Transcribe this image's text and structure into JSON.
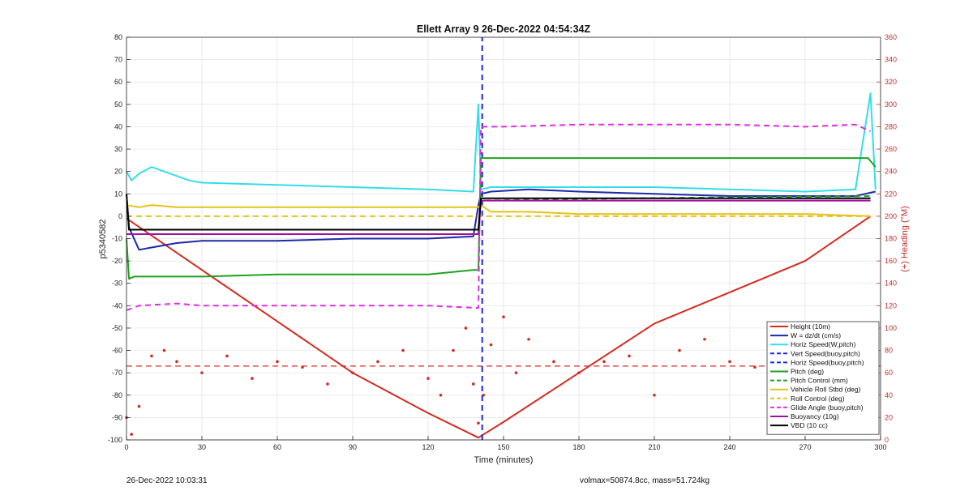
{
  "chart_data": {
    "type": "line",
    "title": "Ellett Array 9 26-Dec-2022 04:54:34Z",
    "xlabel": "Time (minutes)",
    "ylabel": "p5340582",
    "y2label": "(+) Heading (°M)",
    "xlim": [
      0,
      300
    ],
    "ylim": [
      -100,
      80
    ],
    "y2lim": [
      0,
      360
    ],
    "xticks": [
      0,
      30,
      60,
      90,
      120,
      150,
      180,
      210,
      240,
      270,
      300
    ],
    "yticks": [
      -100,
      -90,
      -80,
      -70,
      -60,
      -50,
      -40,
      -30,
      -20,
      -10,
      0,
      10,
      20,
      30,
      40,
      50,
      60,
      70,
      80
    ],
    "y2ticks": [
      0,
      20,
      40,
      60,
      80,
      100,
      120,
      140,
      160,
      180,
      200,
      220,
      240,
      260,
      280,
      300,
      320,
      340,
      360
    ],
    "grid": true,
    "legend_position": "bottom-right",
    "series": [
      {
        "name": "Height (10m)",
        "color": "#d42a20",
        "style": "solid",
        "x": [
          0,
          30,
          60,
          90,
          120,
          140,
          150,
          180,
          210,
          240,
          270,
          296
        ],
        "y": [
          -1,
          -24,
          -47,
          -70,
          -88,
          -99,
          -92,
          -70,
          -48,
          -34,
          -20,
          0
        ]
      },
      {
        "name": "W = dz/dt (cm/s)",
        "color": "#1a2aa8",
        "style": "solid",
        "x": [
          0,
          1,
          5,
          10,
          20,
          30,
          60,
          90,
          120,
          138,
          140,
          141,
          145,
          160,
          180,
          210,
          240,
          270,
          290,
          298
        ],
        "y": [
          10,
          -5,
          -15,
          -14,
          -12,
          -11,
          -11,
          -10,
          -10,
          -9,
          5,
          10,
          11,
          12,
          11,
          10,
          9,
          9,
          9,
          11
        ]
      },
      {
        "name": "Horiz Speed(W,pitch)",
        "color": "#33dde8",
        "style": "solid",
        "x": [
          0,
          2,
          5,
          10,
          15,
          20,
          25,
          30,
          60,
          90,
          120,
          138,
          140,
          141,
          145,
          160,
          180,
          210,
          240,
          270,
          290,
          296,
          298
        ],
        "y": [
          20,
          16,
          19,
          22,
          20,
          18,
          16,
          15,
          14,
          13,
          12,
          11,
          50,
          12,
          13,
          13,
          13,
          13,
          12,
          11,
          12,
          55,
          12
        ]
      },
      {
        "name": "Vert Speed(buoy,pitch)",
        "color": "#1a2ae0",
        "style": "dashed",
        "x": [
          141.5,
          141.5
        ],
        "y": [
          -100,
          80
        ]
      },
      {
        "name": "Horiz Speed(buoy,pitch)",
        "color": "#1a2ae0",
        "style": "dashed",
        "x": [],
        "y": []
      },
      {
        "name": "Pitch (deg)",
        "color": "#20a020",
        "style": "solid",
        "x": [
          0,
          1,
          3,
          10,
          30,
          60,
          90,
          120,
          138,
          140,
          141,
          145,
          160,
          180,
          210,
          240,
          270,
          295,
          298
        ],
        "y": [
          -10,
          -28,
          -27,
          -27,
          -27,
          -26,
          -26,
          -26,
          -24,
          -24,
          26,
          26,
          26,
          26,
          26,
          26,
          26,
          26,
          22
        ]
      },
      {
        "name": "Pitch Control (mm)",
        "color": "#20a020",
        "style": "dashed",
        "x": [
          0,
          2,
          60,
          140,
          141,
          200,
          296
        ],
        "y": [
          -8,
          -8,
          -8,
          -8,
          7,
          8,
          9
        ]
      },
      {
        "name": "Vehicle Roll Stbd (deg)",
        "color": "#e6c21c",
        "style": "solid",
        "x": [
          0,
          5,
          10,
          20,
          30,
          60,
          90,
          120,
          138,
          140,
          141,
          145,
          160,
          180,
          210,
          240,
          270,
          296
        ],
        "y": [
          5,
          4,
          5,
          4,
          4,
          4,
          4,
          4,
          4,
          4,
          5,
          2,
          2,
          1,
          1,
          1,
          1,
          0
        ]
      },
      {
        "name": "Roll Control (deg)",
        "color": "#e6c21c",
        "style": "dashed",
        "x": [
          0,
          140,
          141,
          296
        ],
        "y": [
          0,
          0,
          0,
          0
        ]
      },
      {
        "name": "Glide Angle (buoy,pitch)",
        "color": "#e030e0",
        "style": "dashed",
        "x": [
          0,
          5,
          20,
          30,
          60,
          90,
          120,
          140,
          141,
          150,
          180,
          210,
          240,
          270,
          290,
          296
        ],
        "y": [
          -42,
          -40,
          -39,
          -40,
          -40,
          -40,
          -40,
          -41,
          40,
          40,
          41,
          41,
          41,
          40,
          41,
          38
        ]
      },
      {
        "name": "Buoyancy (10g)",
        "color": "#a010a0",
        "style": "solid",
        "x": [
          0,
          140,
          141,
          296
        ],
        "y": [
          -8,
          -8,
          7,
          7
        ]
      },
      {
        "name": "VBD (10 cc)",
        "color": "#000000",
        "style": "solid",
        "x": [
          0,
          1,
          140,
          141,
          296
        ],
        "y": [
          10,
          -6,
          -6,
          8,
          8
        ]
      }
    ],
    "heading": {
      "name": "Heading",
      "color": "#d42a20",
      "mean": 66,
      "x": [
        0,
        2,
        5,
        10,
        15,
        20,
        30,
        40,
        50,
        60,
        70,
        80,
        90,
        100,
        110,
        120,
        125,
        130,
        135,
        138,
        140,
        142,
        145,
        150,
        155,
        160,
        170,
        180,
        190,
        200,
        210,
        220,
        230,
        240,
        250,
        260,
        270,
        280,
        290,
        296
      ],
      "y": [
        20,
        5,
        30,
        75,
        80,
        70,
        60,
        75,
        55,
        70,
        65,
        50,
        60,
        70,
        80,
        55,
        40,
        80,
        100,
        50,
        15,
        40,
        85,
        110,
        60,
        90,
        70,
        60,
        70,
        75,
        40,
        80,
        90,
        70,
        65,
        60,
        70,
        55,
        60,
        65
      ]
    }
  },
  "footer": {
    "date": "26-Dec-2022 10:03:31",
    "info": "volmax=50874.8cc, mass=51.724kg"
  }
}
